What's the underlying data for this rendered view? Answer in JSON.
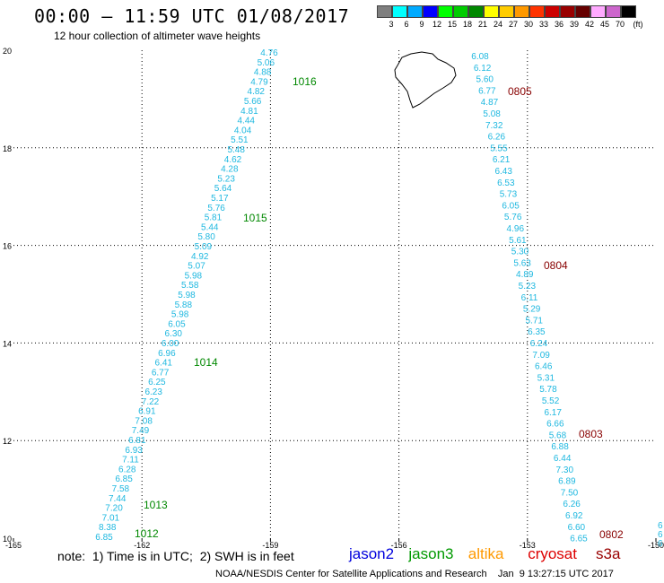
{
  "header": {
    "title": "00:00 – 11:59 UTC 01/08/2017",
    "subtitle": "12 hour collection of altimeter wave heights"
  },
  "colorbar": {
    "unit": "(ft)",
    "stops": [
      {
        "color": "#7f7f7f",
        "label": "3"
      },
      {
        "color": "#00ffff",
        "label": "6"
      },
      {
        "color": "#00aaff",
        "label": "9"
      },
      {
        "color": "#0000ff",
        "label": "12"
      },
      {
        "color": "#00ff00",
        "label": "15"
      },
      {
        "color": "#00cc00",
        "label": "18"
      },
      {
        "color": "#008800",
        "label": "21"
      },
      {
        "color": "#ffff00",
        "label": "24"
      },
      {
        "color": "#ffcc00",
        "label": "27"
      },
      {
        "color": "#ff9900",
        "label": "30"
      },
      {
        "color": "#ff3300",
        "label": "33"
      },
      {
        "color": "#cc0000",
        "label": "36"
      },
      {
        "color": "#990000",
        "label": "39"
      },
      {
        "color": "#660000",
        "label": "42"
      },
      {
        "color": "#ffaaff",
        "label": "45"
      },
      {
        "color": "#cc66cc",
        "label": "70"
      },
      {
        "color": "#000000",
        "label": ""
      }
    ]
  },
  "axes": {
    "x_ticks": [
      "-165",
      "-162",
      "-159",
      "-156",
      "-153",
      "-150"
    ],
    "y_ticks": [
      "10",
      "12",
      "14",
      "16",
      "18",
      "20"
    ]
  },
  "tracks": {
    "left_color": "#1fb8e0",
    "left": [
      "4.76",
      "5.06",
      "4.88",
      "4.79",
      "4.82",
      "5.66",
      "4.81",
      "4.44",
      "4.04",
      "5.51",
      "5.48",
      "4.62",
      "4.28",
      "5.23",
      "5.64",
      "5.17",
      "5.76",
      "5.81",
      "5.44",
      "5.80",
      "5.09",
      "4.92",
      "5.07",
      "5.98",
      "5.58",
      "5.98",
      "5.88",
      "5.98",
      "6.05",
      "6.30",
      "6.00",
      "6.96",
      "6.41",
      "6.77",
      "6.25",
      "6.23",
      "7.22",
      "6.91",
      "7.08",
      "7.49",
      "6.81",
      "6.93",
      "7.11",
      "6.28",
      "6.85",
      "7.58",
      "7.44",
      "7.20",
      "7.01",
      "8.38",
      "6.85"
    ],
    "left_times": [
      {
        "label": "1016",
        "color": "#008800"
      },
      {
        "label": "1015",
        "color": "#008800"
      },
      {
        "label": "1014",
        "color": "#008800"
      },
      {
        "label": "1013",
        "color": "#008800"
      },
      {
        "label": "1012",
        "color": "#008800"
      }
    ],
    "right_color": "#1fb8e0",
    "right": [
      "6.08",
      "6.12",
      "5.60",
      "6.77",
      "4.87",
      "5.08",
      "7.32",
      "6.26",
      "5.55",
      "6.21",
      "6.43",
      "6.53",
      "5.73",
      "6.05",
      "5.76",
      "4.96",
      "5.61",
      "5.30",
      "5.63",
      "4.89",
      "5.23",
      "6.11",
      "5.29",
      "5.71",
      "6.35",
      "6.24",
      "7.09",
      "6.46",
      "5.31",
      "5.78",
      "5.52",
      "6.17",
      "6.66",
      "5.68",
      "6.88",
      "6.44",
      "7.30",
      "6.89",
      "7.50",
      "6.26",
      "6.92",
      "6.60",
      "6.65"
    ],
    "right_times": [
      {
        "label": "0805",
        "color": "#880000"
      },
      {
        "label": "0804",
        "color": "#880000"
      },
      {
        "label": "0803",
        "color": "#880000"
      },
      {
        "label": "0802",
        "color": "#880000"
      }
    ],
    "edge_values": [
      "6",
      "6",
      "6"
    ]
  },
  "notes": {
    "note": "note:  1) Time is in UTC;  2) SWH is in feet",
    "footer": "NOAA/NESDIS Center for Satellite Applications and Research    Jan  9 13:27:15 UTC 2017"
  },
  "satellites": [
    {
      "name": "jason2",
      "color": "#0000dd"
    },
    {
      "name": "jason3",
      "color": "#009900"
    },
    {
      "name": "altika",
      "color": "#ff9900"
    },
    {
      "name": "cryosat",
      "color": "#dd0000"
    },
    {
      "name": "s3a",
      "color": "#990000"
    }
  ]
}
